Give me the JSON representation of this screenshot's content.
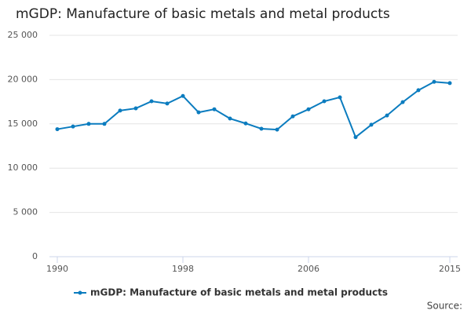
{
  "chart_data": {
    "type": "line",
    "title": "mGDP: Manufacture of basic metals and metal products",
    "x": [
      1990,
      1991,
      1992,
      1993,
      1994,
      1995,
      1996,
      1997,
      1998,
      1999,
      2000,
      2001,
      2002,
      2003,
      2004,
      2005,
      2006,
      2007,
      2008,
      2009,
      2010,
      2011,
      2012,
      2013,
      2014,
      2015
    ],
    "series": [
      {
        "name": "mGDP: Manufacture of basic metals and metal products",
        "color": "#0b7cbf",
        "values": [
          14400,
          14700,
          15000,
          15000,
          16500,
          16750,
          17550,
          17300,
          18150,
          16300,
          16650,
          15600,
          15050,
          14450,
          14350,
          15850,
          16650,
          17550,
          18000,
          13500,
          14900,
          15950,
          17450,
          18800,
          19750,
          19600
        ]
      }
    ],
    "xlim": [
      1989.5,
      2015.5
    ],
    "xticks": [
      1990,
      1998,
      2006,
      2015
    ],
    "ylim": [
      0,
      25000
    ],
    "yticks": [
      0,
      {
        "value": 5000,
        "label": "5 000"
      },
      {
        "value": 10000,
        "label": "10 000"
      },
      {
        "value": 15000,
        "label": "15 000"
      },
      {
        "value": 20000,
        "label": "20 000"
      },
      {
        "value": 25000,
        "label": "25 000"
      }
    ],
    "grid": true,
    "legend": "bottom",
    "source": "Source:"
  }
}
